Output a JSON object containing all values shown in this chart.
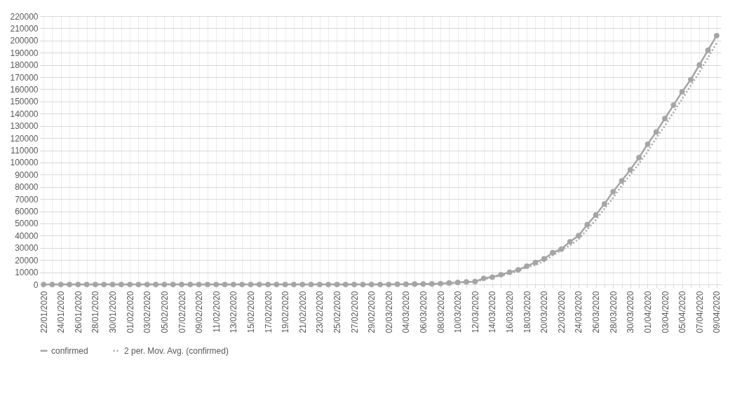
{
  "chart_data": {
    "type": "line",
    "categories": [
      "22/01/2020",
      null,
      "24/01/2020",
      null,
      "26/01/2020",
      null,
      "28/01/2020",
      null,
      "30/01/2020",
      null,
      "01/02/2020",
      null,
      "03/02/2020",
      null,
      "05/02/2020",
      null,
      "07/02/2020",
      null,
      "09/02/2020",
      null,
      "11/02/2020",
      null,
      "13/02/2020",
      null,
      "15/02/2020",
      null,
      "17/02/2020",
      null,
      "19/02/2020",
      null,
      "21/02/2020",
      null,
      "23/02/2020",
      null,
      "25/02/2020",
      null,
      "27/02/2020",
      null,
      "29/02/2020",
      null,
      "02/03/2020",
      null,
      "04/03/2020",
      null,
      "06/03/2020",
      null,
      "08/03/2020",
      null,
      "10/03/2020",
      null,
      "12/03/2020",
      null,
      "14/03/2020",
      null,
      "16/03/2020",
      null,
      "18/03/2020",
      null,
      "20/03/2020",
      null,
      "22/03/2020",
      null,
      "24/03/2020",
      null,
      "26/03/2020",
      null,
      "28/03/2020",
      null,
      "30/03/2020",
      null,
      "01/04/2020",
      null,
      "03/04/2020",
      null,
      "05/04/2020",
      null,
      "07/04/2020",
      null,
      "09/04/2020"
    ],
    "series": [
      {
        "name": "confirmed",
        "color": "#a5a5a5",
        "marker": "circle",
        "line_style": "solid",
        "values": [
          0,
          0,
          0,
          0,
          0,
          0,
          0,
          0,
          0,
          0,
          0,
          0,
          0,
          0,
          0,
          0,
          0,
          0,
          0,
          0,
          0,
          0,
          0,
          0,
          0,
          0,
          0,
          0,
          0,
          0,
          0,
          0,
          0,
          0,
          0,
          0,
          0,
          0,
          0,
          0,
          0,
          200,
          200,
          300,
          400,
          500,
          700,
          1200,
          1600,
          2100,
          2300,
          5000,
          6000,
          8000,
          10000,
          12000,
          15000,
          18000,
          21000,
          26000,
          29000,
          35000,
          40000,
          49000,
          57000,
          66000,
          76000,
          85000,
          94000,
          104000,
          115000,
          125000,
          136000,
          147000,
          158000,
          168000,
          180000,
          192000,
          204000
        ]
      },
      {
        "name": "2 per. Mov. Avg. (confirmed)",
        "color": "#a5a5a5",
        "marker": "none",
        "line_style": "dotted",
        "values": [
          null,
          0,
          0,
          0,
          0,
          0,
          0,
          0,
          0,
          0,
          0,
          0,
          0,
          0,
          0,
          0,
          0,
          0,
          0,
          0,
          0,
          0,
          0,
          0,
          0,
          0,
          0,
          0,
          0,
          0,
          0,
          0,
          0,
          0,
          0,
          0,
          0,
          0,
          0,
          0,
          0,
          0,
          0,
          0,
          0,
          0,
          1000,
          1000,
          1000,
          2000,
          2000,
          4000,
          6000,
          7000,
          9000,
          11000,
          14000,
          16000,
          19000,
          24000,
          28000,
          32000,
          37000,
          45000,
          53000,
          62000,
          71000,
          81000,
          90000,
          99000,
          109000,
          120000,
          130000,
          141000,
          152000,
          163000,
          174000,
          186000,
          198000
        ]
      }
    ],
    "ylim": [
      0,
      220000
    ],
    "yticks": [
      0,
      10000,
      20000,
      30000,
      40000,
      50000,
      60000,
      70000,
      80000,
      90000,
      100000,
      110000,
      120000,
      130000,
      140000,
      150000,
      160000,
      170000,
      180000,
      190000,
      200000,
      210000,
      220000
    ],
    "grid": true,
    "legend": "bottom"
  }
}
